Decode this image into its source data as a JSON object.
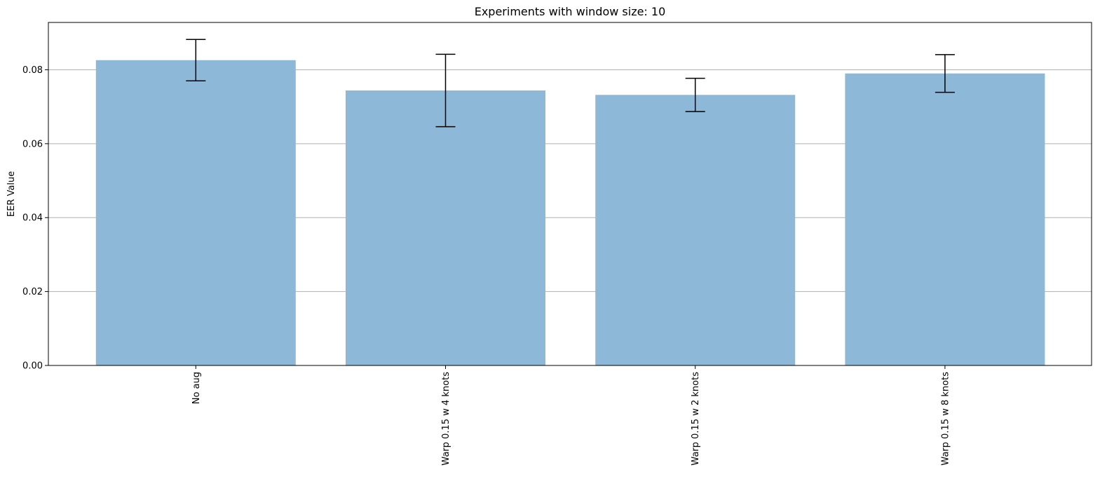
{
  "chart_data": {
    "type": "bar",
    "title": "Experiments with window size: 10",
    "xlabel": "",
    "ylabel": "EER Value",
    "categories": [
      "No aug",
      "Warp 0.15 w 4 knots",
      "Warp 0.15 w 2 knots",
      "Warp 0.15 w 8 knots"
    ],
    "values": [
      0.0826,
      0.0744,
      0.0732,
      0.079
    ],
    "errors": [
      0.0056,
      0.0098,
      0.0045,
      0.0051
    ],
    "ylim": [
      0,
      0.0928
    ],
    "yticks": [
      0.0,
      0.02,
      0.04,
      0.06,
      0.08
    ],
    "ytick_labels": [
      "0.00",
      "0.02",
      "0.04",
      "0.06",
      "0.08"
    ],
    "grid": "y",
    "bar_color": "#8db8d8",
    "error_color": "#000000",
    "grid_color": "#b0b0b0"
  }
}
